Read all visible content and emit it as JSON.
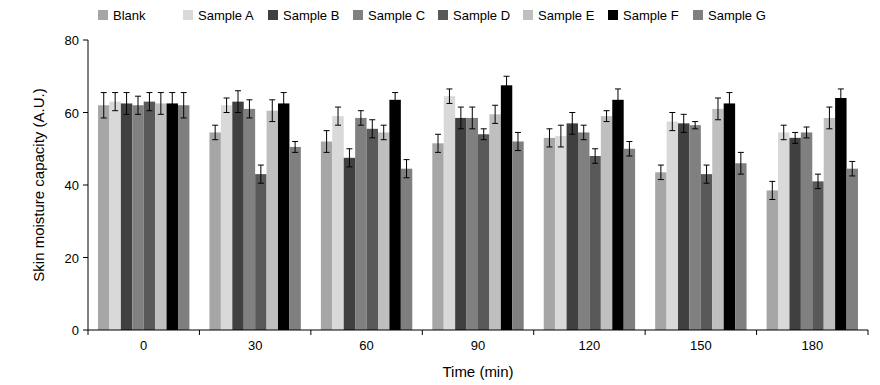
{
  "chart_data": {
    "type": "bar",
    "categories": [
      "0",
      "30",
      "60",
      "90",
      "120",
      "150",
      "180"
    ],
    "x_label": "Time (min)",
    "y_label": "Skin moisture capacity (A.U.)",
    "ylim": [
      0,
      80
    ],
    "yticks": [
      0,
      20,
      40,
      60,
      80
    ],
    "grid": false,
    "legend": "top",
    "series": [
      {
        "name": "Blank",
        "color": "#a6a6a6",
        "values": [
          62,
          54.5,
          52,
          51.5,
          53,
          43.5,
          38.5
        ],
        "errors": [
          3.5,
          2,
          3,
          2.5,
          2.5,
          2,
          2.5
        ]
      },
      {
        "name": "Sample A",
        "color": "#d9d9d9",
        "values": [
          63,
          62,
          59,
          64.5,
          53.5,
          57.5,
          54.5
        ],
        "errors": [
          2.5,
          2,
          2.5,
          2,
          3,
          2.5,
          2
        ]
      },
      {
        "name": "Sample B",
        "color": "#404040",
        "values": [
          62.5,
          63,
          47.5,
          58.5,
          57,
          57,
          53
        ],
        "errors": [
          3,
          3,
          2.5,
          3,
          3,
          2.5,
          1.5
        ]
      },
      {
        "name": "Sample C",
        "color": "#808080",
        "values": [
          62,
          61,
          58.5,
          58.5,
          54.5,
          56.5,
          54.5
        ],
        "errors": [
          2.5,
          2.5,
          2,
          3,
          2,
          1,
          1.5
        ]
      },
      {
        "name": "Sample D",
        "color": "#595959",
        "values": [
          63,
          43,
          55.5,
          54,
          48,
          43,
          41
        ],
        "errors": [
          2.5,
          2.5,
          2.5,
          1.5,
          2,
          2.5,
          2
        ]
      },
      {
        "name": "Sample E",
        "color": "#bfbfbf",
        "values": [
          62.5,
          60.5,
          54.5,
          59.5,
          59,
          61,
          58.5
        ],
        "errors": [
          3,
          3,
          2,
          2.5,
          1.5,
          3,
          3
        ]
      },
      {
        "name": "Sample F",
        "color": "#000000",
        "values": [
          62.5,
          62.5,
          63.5,
          67.5,
          63.5,
          62.5,
          64
        ],
        "errors": [
          3,
          3,
          2,
          2.5,
          3,
          3,
          2.5
        ]
      },
      {
        "name": "Sample G",
        "color": "#7f7f7f",
        "values": [
          62,
          50.5,
          44.5,
          52,
          50,
          46,
          44.5
        ],
        "errors": [
          3.5,
          1.5,
          2.5,
          2.5,
          2,
          3,
          2
        ]
      }
    ]
  }
}
